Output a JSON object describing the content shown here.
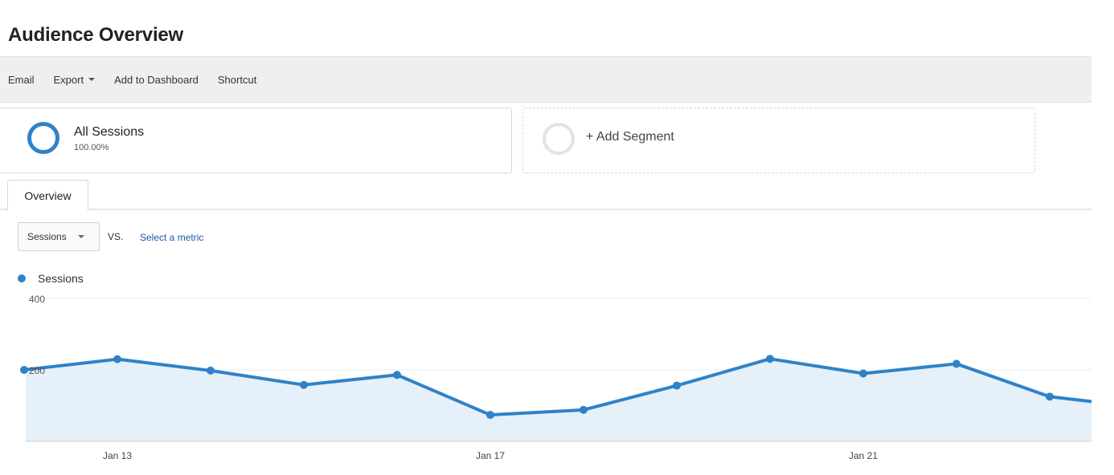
{
  "page": {
    "title": "Audience Overview"
  },
  "toolbar": {
    "email": "Email",
    "export": "Export",
    "add_to_dashboard": "Add to Dashboard",
    "shortcut": "Shortcut"
  },
  "segments": {
    "active": {
      "name": "All Sessions",
      "percent": "100.00%"
    },
    "add_label": "+ Add Segment"
  },
  "tabs": [
    {
      "label": "Overview",
      "selected": true
    }
  ],
  "metric_controls": {
    "selected_metric": "Sessions",
    "vs_label": "VS.",
    "select_metric_link": "Select a metric"
  },
  "colors": {
    "series": "#2f82c8",
    "area_fill": "#e6f0f8",
    "link": "#1a56a8"
  },
  "chart_data": {
    "type": "area",
    "x": [
      "Jan 12",
      "Jan 13",
      "Jan 14",
      "Jan 15",
      "Jan 16",
      "Jan 17",
      "Jan 18",
      "Jan 19",
      "Jan 20",
      "Jan 21",
      "Jan 22",
      "Jan 23",
      "Jan 24"
    ],
    "x_tick_labels": [
      "Jan 13",
      "Jan 17",
      "Jan 21"
    ],
    "series": [
      {
        "name": "Sessions",
        "values": [
          200,
          230,
          198,
          158,
          186,
          74,
          88,
          156,
          231,
          190,
          217,
          125,
          95
        ]
      }
    ],
    "y_ticks": [
      200,
      400
    ],
    "ylim": [
      0,
      400
    ],
    "grid": true,
    "legend": "top-left"
  }
}
